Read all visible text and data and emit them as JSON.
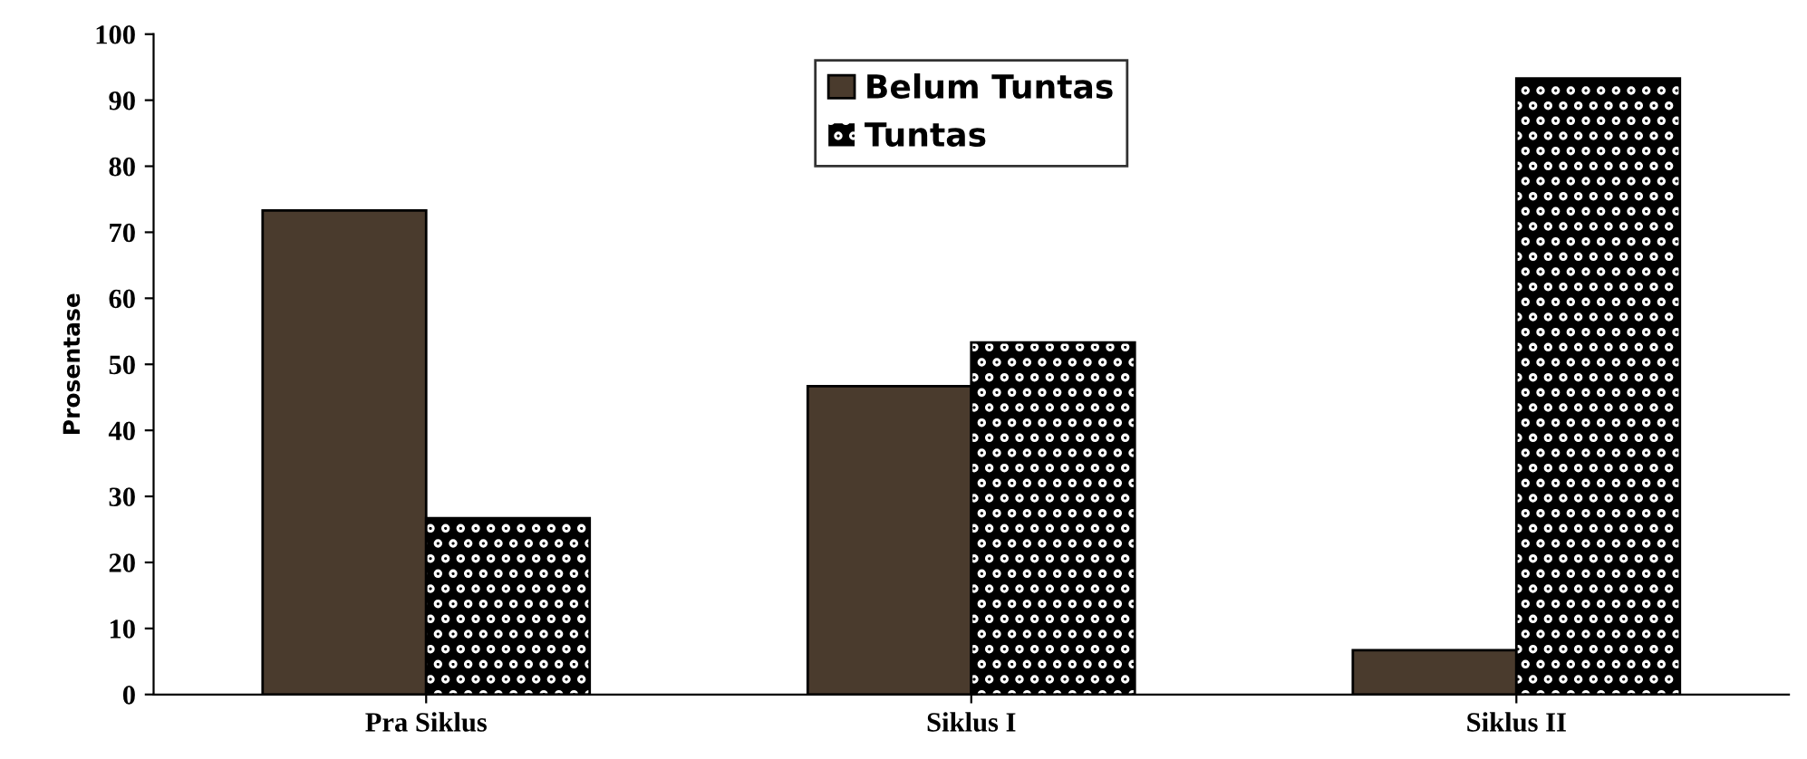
{
  "chart_data": {
    "type": "bar",
    "ylabel": "Prosentase",
    "categories": [
      "Pra Siklus",
      "Siklus I",
      "Siklus II"
    ],
    "series": [
      {
        "name": "Belum Tuntas",
        "color": "#4a3b2d",
        "values": [
          73.3,
          46.7,
          6.7
        ]
      },
      {
        "name": "Tuntas",
        "color": "#000000",
        "values": [
          26.7,
          53.3,
          93.3
        ]
      }
    ],
    "ylim": [
      0,
      100
    ],
    "yticks": [
      0,
      10,
      20,
      30,
      40,
      50,
      60,
      70,
      80,
      90,
      100
    ],
    "grid": false,
    "legend": "top"
  }
}
